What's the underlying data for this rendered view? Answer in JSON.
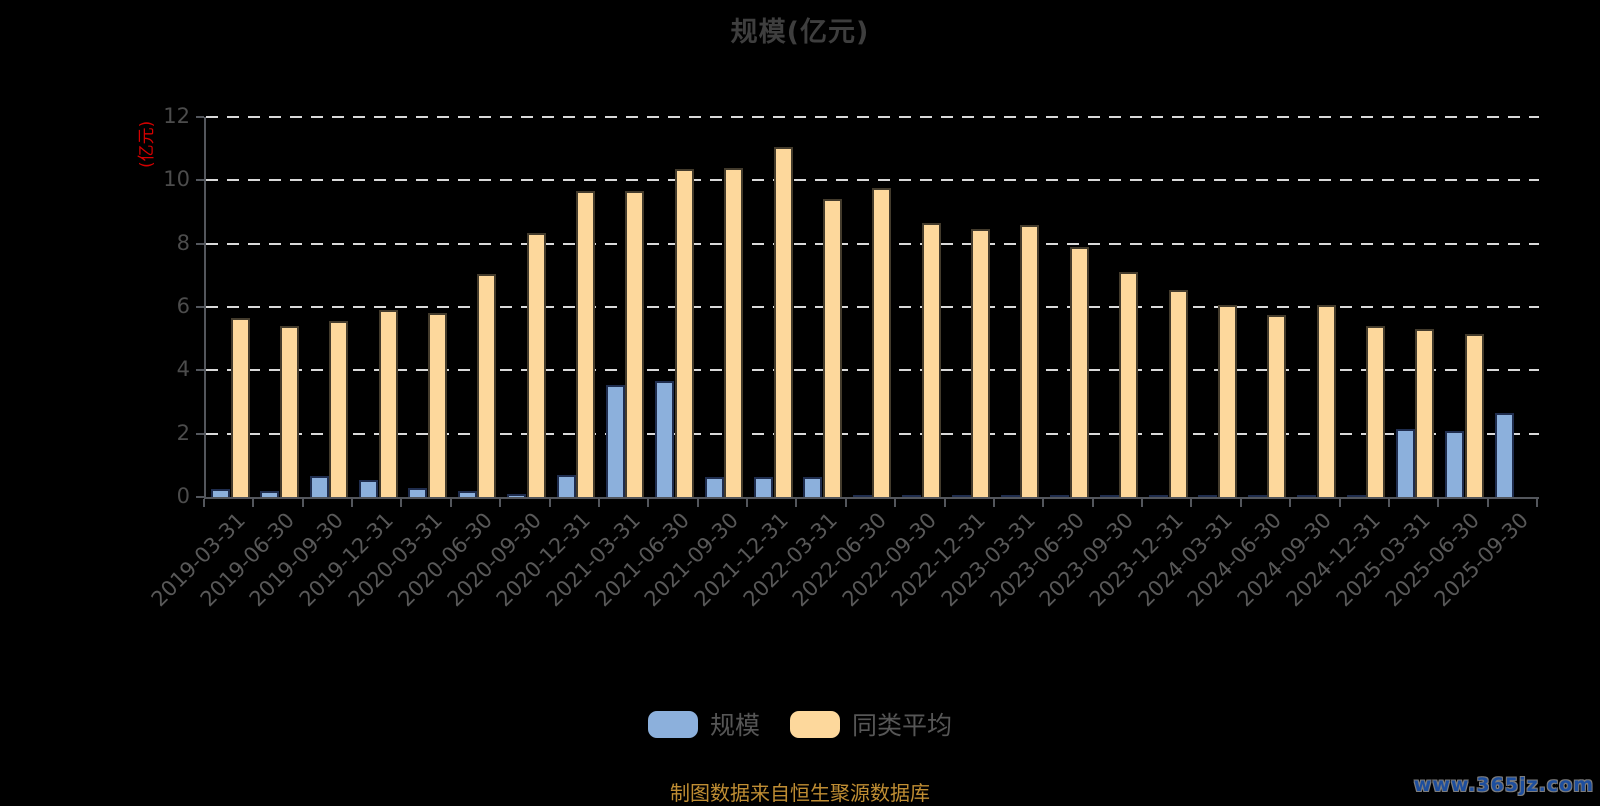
{
  "title": "规模(亿元)",
  "y_axis": {
    "name": "(亿元)",
    "ticks": [
      12,
      10,
      8,
      6,
      4,
      2,
      0
    ]
  },
  "footer": {
    "source_note": "制图数据来自恒生聚源数据库",
    "watermark": "www.365jz.com"
  },
  "colors": {
    "background": "#000000",
    "scale_fill": "#8cb0dc",
    "scale_border": "#1f2d4e",
    "average_fill": "#fdd89c",
    "average_border": "#433b2c",
    "grid": "#d9d9d9",
    "axis": "#53565c",
    "axis_name_red": "#d40000",
    "text_gray": "#595959"
  },
  "chart_data": {
    "type": "bar",
    "title": "规模(亿元)",
    "ylabel": "(亿元)",
    "ylim": [
      0,
      12
    ],
    "y_ticks": [
      0,
      2,
      4,
      6,
      8,
      10,
      12
    ],
    "grid": "horizontal-dashed",
    "legend_position": "bottom",
    "categories": [
      "2019-03-31",
      "2019-06-30",
      "2019-09-30",
      "2019-12-31",
      "2020-03-31",
      "2020-06-30",
      "2020-09-30",
      "2020-12-31",
      "2021-03-31",
      "2021-06-30",
      "2021-09-30",
      "2021-12-31",
      "2022-03-31",
      "2022-06-30",
      "2022-09-30",
      "2022-12-31",
      "2023-03-31",
      "2023-06-30",
      "2023-09-30",
      "2023-12-31",
      "2024-03-31",
      "2024-06-30",
      "2024-09-30",
      "2024-12-31",
      "2025-03-31",
      "2025-06-30",
      "2025-09-30"
    ],
    "series": [
      {
        "name": "规模",
        "color": "#8cb0dc",
        "border_color": "#1f2d4e",
        "values": [
          0.25,
          0.18,
          0.65,
          0.54,
          0.3,
          0.19,
          0.09,
          0.7,
          3.55,
          3.65,
          0.62,
          0.62,
          0.62,
          0.05,
          0.05,
          0.05,
          0.05,
          0.05,
          0.05,
          0.05,
          0.05,
          0.05,
          0.05,
          0.05,
          2.15,
          2.1,
          2.65
        ]
      },
      {
        "name": "同类平均",
        "color": "#fdd89c",
        "border_color": "#433b2c",
        "values": [
          5.65,
          5.4,
          5.55,
          5.9,
          5.8,
          7.05,
          8.35,
          9.65,
          9.65,
          10.35,
          10.4,
          11.05,
          9.4,
          9.75,
          8.65,
          8.45,
          8.6,
          7.9,
          7.1,
          6.55,
          6.05,
          5.75,
          6.05,
          5.4,
          5.3,
          5.15,
          null
        ]
      }
    ]
  }
}
